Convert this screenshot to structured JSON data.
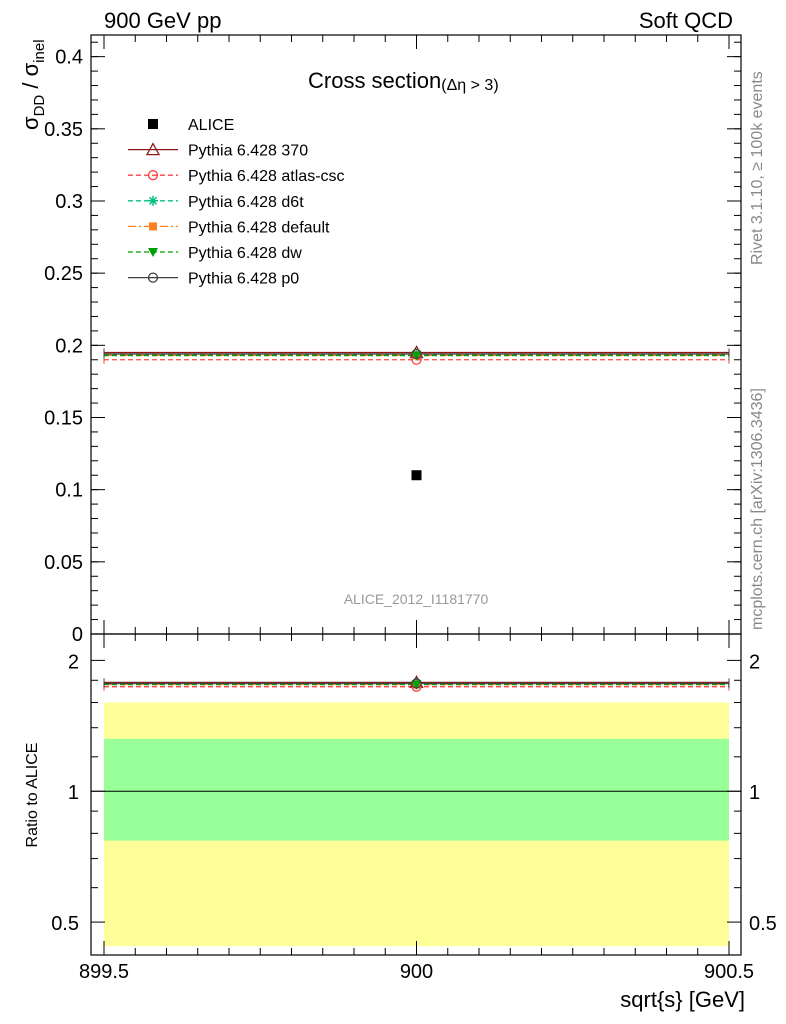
{
  "header": {
    "left": "900 GeV pp",
    "right": "Soft QCD"
  },
  "side_text": {
    "rivet": "Rivet 3.1.10, ≥ 100k events",
    "mcplots": "mcplots.cern.ch [arXiv:1306.3436]"
  },
  "chart_data": {
    "type": "scatter",
    "title": "Cross section",
    "title_suffix": "(Δη > 3)",
    "watermark": "ALICE_2012_I1181770",
    "ylabel_main": {
      "base1": "σ",
      "sub1": "DD",
      "slash": " / ",
      "base2": "σ",
      "sub2": "inel"
    },
    "ylabel_ratio": "Ratio to ALICE",
    "xlabel": "sqrt{s} [GeV]",
    "xlim": [
      899.5,
      900.5
    ],
    "x_ticks": [
      "899.5",
      "900",
      "900.5"
    ],
    "ylim_main": [
      0,
      0.415
    ],
    "y_ticks_main": [
      "0",
      "0.05",
      "0.1",
      "0.15",
      "0.2",
      "0.25",
      "0.3",
      "0.35",
      "0.4"
    ],
    "ylim_ratio": [
      0.42,
      2.3
    ],
    "y_ticks_ratio": [
      "0.5",
      "1",
      "2"
    ],
    "legend_position": "top-left",
    "data": {
      "name": "ALICE",
      "x": 900,
      "y": 0.11
    },
    "ratio_bands": {
      "yellow": [
        0.44,
        1.6
      ],
      "green": [
        0.77,
        1.32
      ],
      "yellow_color": "#ffff99",
      "green_color": "#99ff99"
    },
    "series": [
      {
        "name": "Pythia 6.428 370",
        "y": 0.195,
        "ratio": 1.78,
        "color": "#8b1a1a",
        "marker": "triangle-open",
        "dash": "solid"
      },
      {
        "name": "Pythia 6.428 atlas-csc",
        "y": 0.19,
        "ratio": 1.74,
        "color": "#ff4040",
        "marker": "circle-open",
        "dash": "dashed"
      },
      {
        "name": "Pythia 6.428 d6t",
        "y": 0.193,
        "ratio": 1.76,
        "color": "#00c080",
        "marker": "star",
        "dash": "dashed"
      },
      {
        "name": "Pythia 6.428 default",
        "y": 0.193,
        "ratio": 1.76,
        "color": "#ff8020",
        "marker": "square-filled",
        "dash": "dashdot"
      },
      {
        "name": "Pythia 6.428 dw",
        "y": 0.193,
        "ratio": 1.76,
        "color": "#00a000",
        "marker": "triangle-down-filled",
        "dash": "dashed"
      },
      {
        "name": "Pythia 6.428 p0",
        "y": 0.194,
        "ratio": 1.77,
        "color": "#404040",
        "marker": "circle-open",
        "dash": "solid"
      }
    ]
  }
}
